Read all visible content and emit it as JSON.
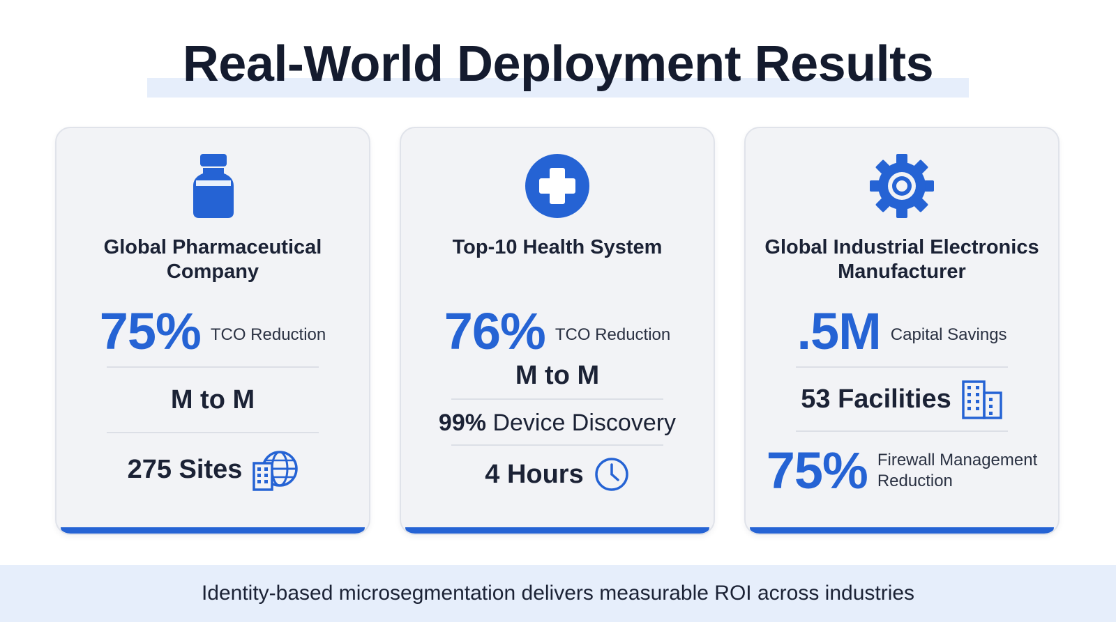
{
  "title": "Real-World Deployment Results",
  "colors": {
    "accent": "#2563d4",
    "card_bg": "#f2f3f6",
    "highlight": "#e6eefb"
  },
  "cards": [
    {
      "icon": "vial-icon",
      "title_line1": "Global Pharmaceutical",
      "title_line2": "Company",
      "big_value": "75%",
      "big_label": "TCO Reduction",
      "row2": "M to M",
      "row3": "275 Sites",
      "row3_icon": "building-globe-icon"
    },
    {
      "icon": "medical-cross-icon",
      "title_line1": "Top-10 Health System",
      "big_value": "76%",
      "big_label": "TCO Reduction",
      "row2": "M to M",
      "row3_value": "99%",
      "row3_label": "Device Discovery",
      "row4": "4 Hours",
      "row4_icon": "clock-icon"
    },
    {
      "icon": "gear-icon",
      "title_line1": "Global Industrial Electronics",
      "title_line2": "Manufacturer",
      "big_value": ".5M",
      "big_label": "Capital Savings",
      "row2": "53 Facilities",
      "row2_icon": "building-icon",
      "row3_value": "75%",
      "row3_label_line1": "Firewall Management",
      "row3_label_line2": "Reduction"
    }
  ],
  "footer": "Identity-based microsegmentation delivers measurable ROI across industries"
}
